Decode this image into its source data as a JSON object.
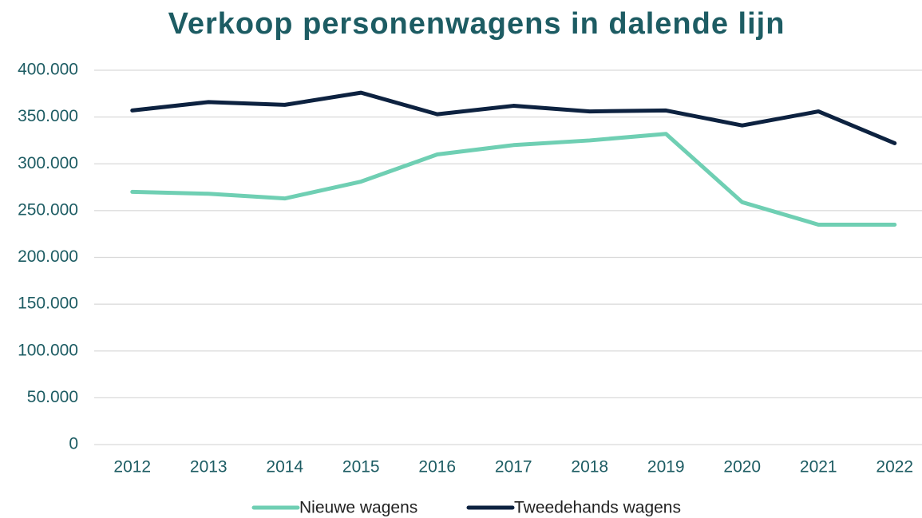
{
  "chart_data": {
    "type": "line",
    "title": "Verkoop personenwagens in dalende lijn",
    "categories": [
      "2012",
      "2013",
      "2014",
      "2015",
      "2016",
      "2017",
      "2018",
      "2019",
      "2020",
      "2021",
      "2022"
    ],
    "series": [
      {
        "name": "Nieuwe wagens",
        "color": "#6fcfb3",
        "values": [
          270000,
          268000,
          263000,
          281000,
          310000,
          320000,
          325000,
          332000,
          259000,
          235000,
          235000
        ]
      },
      {
        "name": "Tweedehands wagens",
        "color": "#0d2240",
        "values": [
          357000,
          366000,
          363000,
          376000,
          353000,
          362000,
          356000,
          357000,
          341000,
          356000,
          322000
        ]
      }
    ],
    "ylim": [
      0,
      400000
    ],
    "yticks": [
      0,
      {
        "value": 50000,
        "label": "50.000"
      },
      {
        "value": 100000,
        "label": "100.000"
      },
      {
        "value": 150000,
        "label": "150.000"
      },
      {
        "value": 200000,
        "label": "200.000"
      },
      {
        "value": 250000,
        "label": "250.000"
      },
      {
        "value": 300000,
        "label": "300.000"
      },
      {
        "value": 350000,
        "label": "350.000"
      },
      {
        "value": 400000,
        "label": "400.000"
      }
    ],
    "grid": true,
    "legend": "bottom"
  }
}
